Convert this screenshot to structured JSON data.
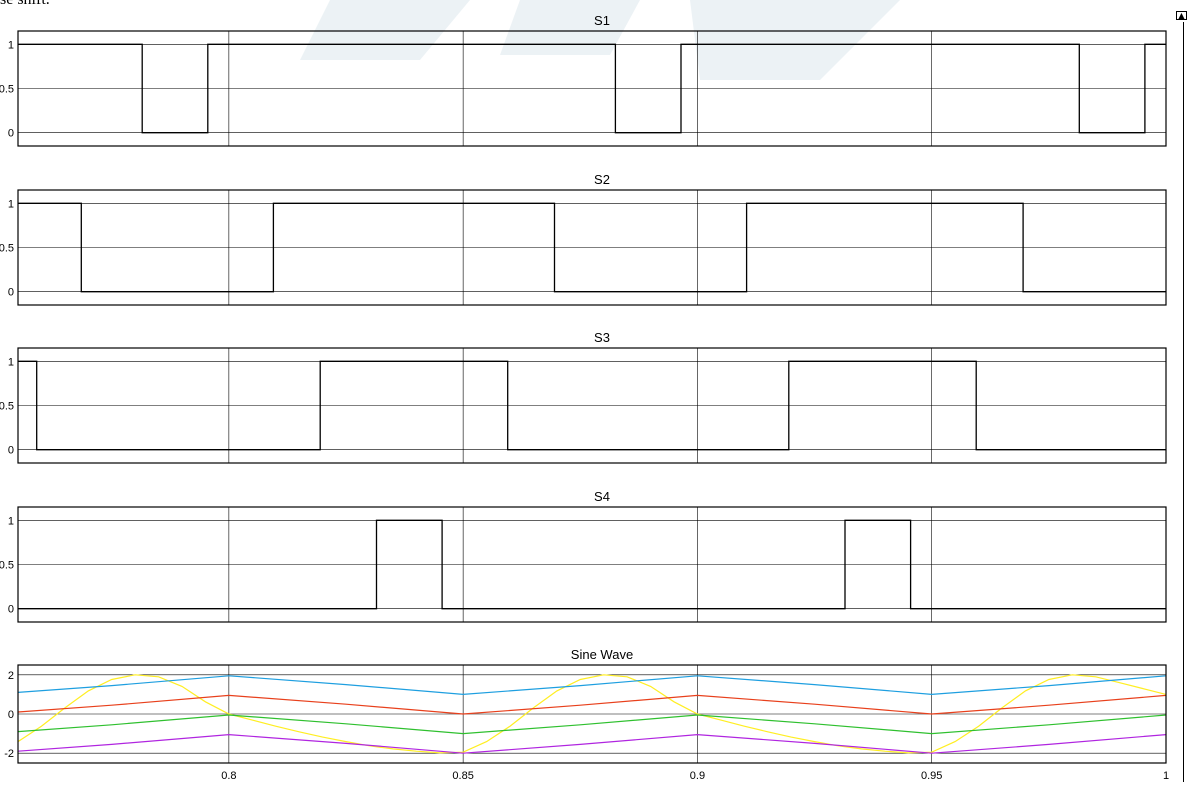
{
  "caption": "se shift.",
  "scroll_button_icon": "panel-collapse-icon",
  "scroll_button_glyph": "▲",
  "chart_data": [
    {
      "type": "line",
      "title": "S1",
      "xlim": [
        0.755,
        1.0
      ],
      "ylim": [
        -0.15,
        1.15
      ],
      "yticks": [
        0,
        0.5,
        1
      ],
      "ytick_labels": [
        "0",
        "0.5",
        "1"
      ],
      "grid": true,
      "series": [
        {
          "color": "#000000",
          "step": true,
          "x": [
            0.755,
            0.7815,
            0.7815,
            0.7955,
            0.7955,
            0.8825,
            0.8825,
            0.8965,
            0.8965,
            0.9815,
            0.9815,
            0.9955,
            0.9955,
            1.0
          ],
          "values": [
            1,
            1,
            0,
            0,
            1,
            1,
            0,
            0,
            1,
            1,
            0,
            0,
            1,
            1
          ]
        }
      ]
    },
    {
      "type": "line",
      "title": "S2",
      "xlim": [
        0.755,
        1.0
      ],
      "ylim": [
        -0.15,
        1.15
      ],
      "yticks": [
        0,
        0.5,
        1
      ],
      "ytick_labels": [
        "0",
        "0.5",
        "1"
      ],
      "grid": true,
      "series": [
        {
          "color": "#000000",
          "step": true,
          "x": [
            0.755,
            0.7685,
            0.7685,
            0.8095,
            0.8095,
            0.8695,
            0.8695,
            0.9105,
            0.9105,
            0.9695,
            0.9695,
            1.0
          ],
          "values": [
            1,
            1,
            0,
            0,
            1,
            1,
            0,
            0,
            1,
            1,
            0,
            0
          ]
        }
      ]
    },
    {
      "type": "line",
      "title": "S3",
      "xlim": [
        0.755,
        1.0
      ],
      "ylim": [
        -0.15,
        1.15
      ],
      "yticks": [
        0,
        0.5,
        1
      ],
      "ytick_labels": [
        "0",
        "0.5",
        "1"
      ],
      "grid": true,
      "series": [
        {
          "color": "#000000",
          "step": true,
          "x": [
            0.755,
            0.759,
            0.759,
            0.8195,
            0.8195,
            0.8595,
            0.8595,
            0.9195,
            0.9195,
            0.9595,
            0.9595,
            1.0
          ],
          "values": [
            1,
            1,
            0,
            0,
            1,
            1,
            0,
            0,
            1,
            1,
            0,
            0
          ]
        }
      ]
    },
    {
      "type": "line",
      "title": "S4",
      "xlim": [
        0.755,
        1.0
      ],
      "ylim": [
        -0.15,
        1.15
      ],
      "yticks": [
        0,
        0.5,
        1
      ],
      "ytick_labels": [
        "0",
        "0.5",
        "1"
      ],
      "grid": true,
      "series": [
        {
          "color": "#000000",
          "step": true,
          "x": [
            0.755,
            0.8315,
            0.8315,
            0.8455,
            0.8455,
            0.9315,
            0.9315,
            0.9455,
            0.9455,
            1.0
          ],
          "values": [
            0,
            0,
            1,
            1,
            0,
            0,
            1,
            1,
            0,
            0
          ]
        }
      ]
    },
    {
      "type": "line",
      "title": "Sine Wave",
      "xlim": [
        0.755,
        1.0
      ],
      "ylim": [
        -2.5,
        2.5
      ],
      "yticks": [
        -2,
        0,
        2
      ],
      "ytick_labels": [
        "-2",
        "0",
        "2"
      ],
      "xticks": [
        0.8,
        0.85,
        0.9,
        0.95,
        1.0
      ],
      "xtick_labels": [
        "0.8",
        "0.85",
        "0.9",
        "0.95",
        "1"
      ],
      "grid": true,
      "series": [
        {
          "color": "#ffee22",
          "x": [
            0.755,
            0.76,
            0.765,
            0.77,
            0.775,
            0.78,
            0.785,
            0.79,
            0.795,
            0.8,
            0.805,
            0.81,
            0.815,
            0.82,
            0.825,
            0.83,
            0.835,
            0.84,
            0.845,
            0.85,
            0.855,
            0.86,
            0.865,
            0.87,
            0.875,
            0.88,
            0.885,
            0.89,
            0.895,
            0.9,
            0.905,
            0.91,
            0.915,
            0.92,
            0.925,
            0.93,
            0.935,
            0.94,
            0.945,
            0.95,
            0.955,
            0.96,
            0.965,
            0.97,
            0.975,
            0.98,
            0.985,
            0.99,
            0.995,
            1.0
          ],
          "values": [
            -1.41,
            -0.62,
            0.31,
            1.18,
            1.76,
            2.0,
            1.9,
            1.41,
            0.62,
            0.0,
            -0.31,
            -0.62,
            -0.91,
            -1.18,
            -1.41,
            -1.62,
            -1.78,
            -1.9,
            -1.98,
            -1.95,
            -1.41,
            -0.62,
            0.31,
            1.18,
            1.76,
            2.0,
            1.9,
            1.41,
            0.62,
            0.0,
            -0.31,
            -0.62,
            -0.91,
            -1.18,
            -1.41,
            -1.62,
            -1.78,
            -1.9,
            -1.98,
            -1.95,
            -1.41,
            -0.62,
            0.31,
            1.18,
            1.76,
            2.0,
            1.9,
            1.6,
            1.3,
            1.0
          ]
        },
        {
          "color": "#1e9fe0",
          "x": [
            0.755,
            0.775,
            0.8,
            0.825,
            0.85,
            0.875,
            0.9,
            0.925,
            0.95,
            0.975,
            1.0
          ],
          "values": [
            1.1,
            1.45,
            1.95,
            1.5,
            1.0,
            1.45,
            1.95,
            1.5,
            1.0,
            1.45,
            1.95
          ]
        },
        {
          "color": "#e8401c",
          "x": [
            0.755,
            0.775,
            0.8,
            0.825,
            0.85,
            0.875,
            0.9,
            0.925,
            0.95,
            0.975,
            1.0
          ],
          "values": [
            0.1,
            0.45,
            0.95,
            0.5,
            0.0,
            0.45,
            0.95,
            0.5,
            0.0,
            0.45,
            0.95
          ]
        },
        {
          "color": "#2fc02f",
          "x": [
            0.755,
            0.775,
            0.8,
            0.825,
            0.85,
            0.875,
            0.9,
            0.925,
            0.95,
            0.975,
            1.0
          ],
          "values": [
            -0.9,
            -0.55,
            -0.05,
            -0.5,
            -1.0,
            -0.55,
            -0.05,
            -0.5,
            -1.0,
            -0.55,
            -0.05
          ]
        },
        {
          "color": "#b025e0",
          "x": [
            0.755,
            0.775,
            0.8,
            0.825,
            0.85,
            0.875,
            0.9,
            0.925,
            0.95,
            0.975,
            1.0
          ],
          "values": [
            -1.9,
            -1.55,
            -1.05,
            -1.5,
            -2.0,
            -1.55,
            -1.05,
            -1.5,
            -2.0,
            -1.55,
            -1.05
          ]
        }
      ]
    }
  ]
}
